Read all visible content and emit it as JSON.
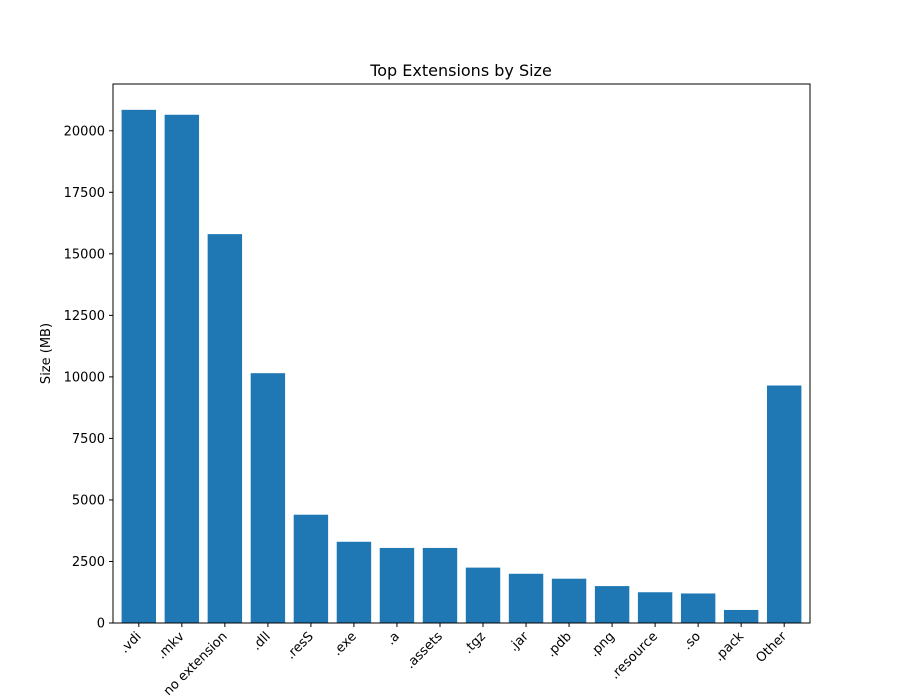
{
  "chart_data": {
    "type": "bar",
    "title": "Top Extensions by Size",
    "xlabel": "",
    "ylabel": "Size (MB)",
    "categories": [
      ".vdi",
      ".mkv",
      "no extension",
      ".dll",
      ".resS",
      ".exe",
      ".a",
      ".assets",
      ".tgz",
      ".jar",
      ".pdb",
      ".png",
      ".resource",
      ".so",
      ".pack",
      "Other"
    ],
    "values": [
      20850,
      20650,
      15800,
      10150,
      4400,
      3300,
      3050,
      3050,
      2250,
      2000,
      1800,
      1500,
      1250,
      1200,
      530,
      9650
    ],
    "ylim": [
      0,
      21900
    ],
    "yticks": [
      0,
      2500,
      5000,
      7500,
      10000,
      12500,
      15000,
      17500,
      20000
    ],
    "bar_color": "#1f77b4",
    "grid": false,
    "legend": "none"
  }
}
